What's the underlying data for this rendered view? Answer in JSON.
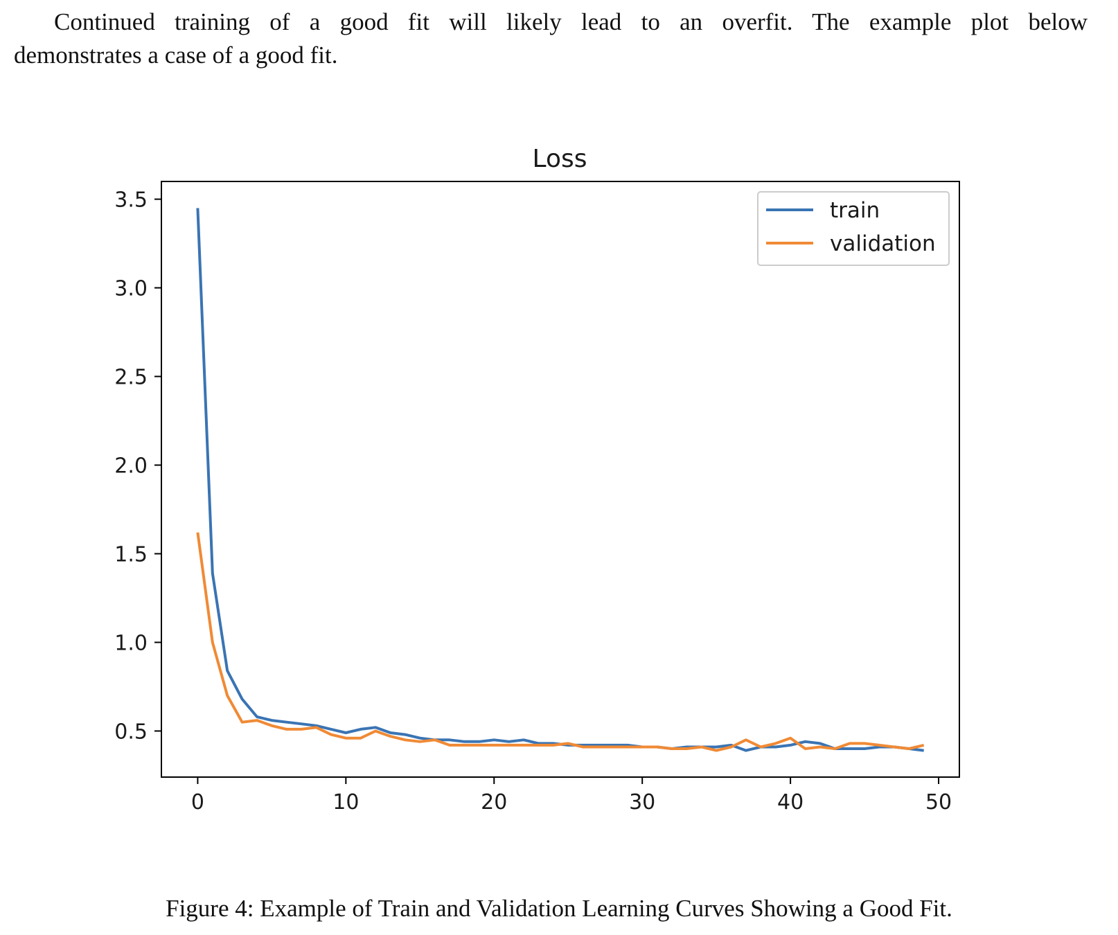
{
  "paragraph": {
    "line1": "Continued training of a good fit will likely lead to an overfit.  The example plot below",
    "line2": "demonstrates a case of a good fit."
  },
  "caption": "Figure 4: Example of Train and Validation Learning Curves Showing a Good Fit.",
  "chart_data": {
    "type": "line",
    "title": "Loss",
    "xlabel": "",
    "ylabel": "",
    "xlim": [
      -2.45,
      51.4
    ],
    "ylim": [
      0.24,
      3.6
    ],
    "xticks": [
      0,
      10,
      20,
      30,
      40,
      50
    ],
    "xtick_labels": [
      "0",
      "10",
      "20",
      "30",
      "40",
      "50"
    ],
    "yticks": [
      0.5,
      1.0,
      1.5,
      2.0,
      2.5,
      3.0,
      3.5
    ],
    "ytick_labels": [
      "0.5",
      "1.0",
      "1.5",
      "2.0",
      "2.5",
      "3.0",
      "3.5"
    ],
    "grid": false,
    "legend_position": "upper right",
    "x": [
      0,
      1,
      2,
      3,
      4,
      5,
      6,
      7,
      8,
      9,
      10,
      11,
      12,
      13,
      14,
      15,
      16,
      17,
      18,
      19,
      20,
      21,
      22,
      23,
      24,
      25,
      26,
      27,
      28,
      29,
      30,
      31,
      32,
      33,
      34,
      35,
      36,
      37,
      38,
      39,
      40,
      41,
      42,
      43,
      44,
      45,
      46,
      47,
      48,
      49
    ],
    "series": [
      {
        "name": "train",
        "color": "#3a74b3",
        "values": [
          3.45,
          1.39,
          0.84,
          0.68,
          0.58,
          0.56,
          0.55,
          0.54,
          0.53,
          0.51,
          0.49,
          0.51,
          0.52,
          0.49,
          0.48,
          0.46,
          0.45,
          0.45,
          0.44,
          0.44,
          0.45,
          0.44,
          0.45,
          0.43,
          0.43,
          0.42,
          0.42,
          0.42,
          0.42,
          0.42,
          0.41,
          0.41,
          0.4,
          0.41,
          0.41,
          0.41,
          0.42,
          0.39,
          0.41,
          0.41,
          0.42,
          0.44,
          0.43,
          0.4,
          0.4,
          0.4,
          0.41,
          0.41,
          0.4,
          0.39
        ]
      },
      {
        "name": "validation",
        "color": "#f08a35",
        "values": [
          1.62,
          1.0,
          0.7,
          0.55,
          0.56,
          0.53,
          0.51,
          0.51,
          0.52,
          0.48,
          0.46,
          0.46,
          0.5,
          0.47,
          0.45,
          0.44,
          0.45,
          0.42,
          0.42,
          0.42,
          0.42,
          0.42,
          0.42,
          0.42,
          0.42,
          0.43,
          0.41,
          0.41,
          0.41,
          0.41,
          0.41,
          0.41,
          0.4,
          0.4,
          0.41,
          0.39,
          0.41,
          0.45,
          0.41,
          0.43,
          0.46,
          0.4,
          0.41,
          0.4,
          0.43,
          0.43,
          0.42,
          0.41,
          0.4,
          0.42
        ]
      }
    ]
  }
}
